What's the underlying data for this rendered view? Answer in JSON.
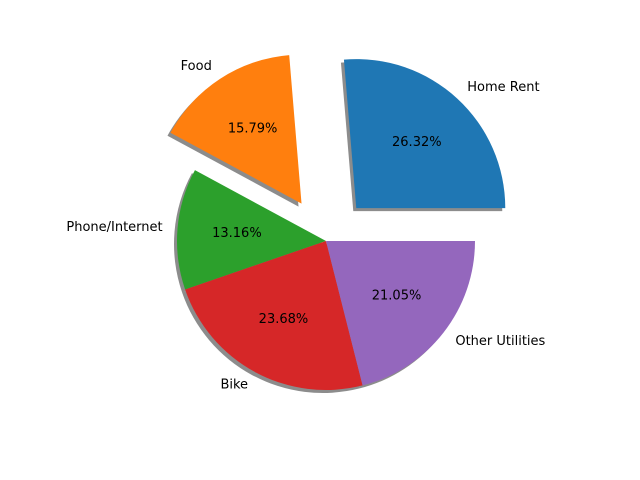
{
  "chart_data": {
    "type": "pie",
    "title": "",
    "categories": [
      "Home Rent",
      "Food",
      "Phone/Internet",
      "Bike",
      "Other Utilities"
    ],
    "values": [
      26.32,
      15.79,
      13.16,
      23.68,
      21.05
    ],
    "value_labels": [
      "26.32%",
      "15.79%",
      "13.16%",
      "23.68%",
      "21.05%"
    ],
    "colors": [
      "#1f77b4",
      "#ff7f0e",
      "#2ca02c",
      "#d62728",
      "#9467bd"
    ],
    "exploded": [
      "Home Rent",
      "Food"
    ],
    "shadow": true,
    "start_angle_deg": 0,
    "direction": "counterclockwise",
    "legend": "none",
    "grid": false
  }
}
